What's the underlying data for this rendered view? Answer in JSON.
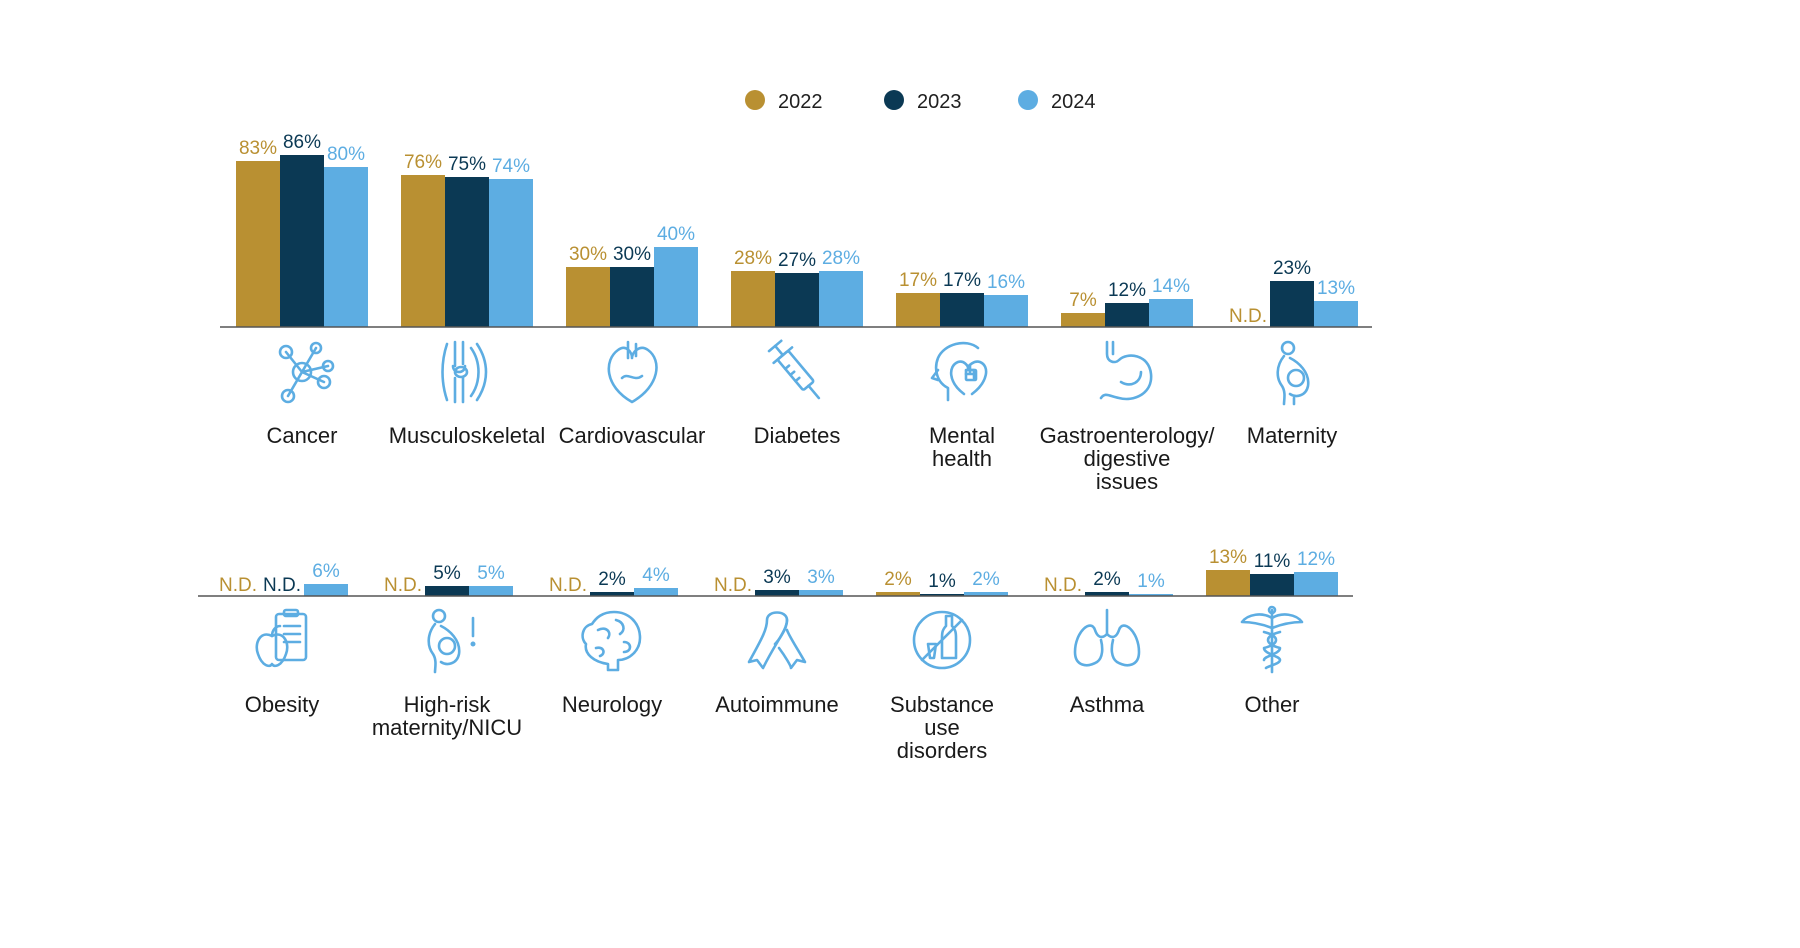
{
  "colors": {
    "2022": "#b99032",
    "2023": "#0b3954",
    "2024": "#5dade2",
    "axis": "#555555",
    "icon": "#5dade2"
  },
  "legend": [
    "2022",
    "2023",
    "2024"
  ],
  "nd_label": "N.D.",
  "chart_data": [
    {
      "type": "bar",
      "categories": [
        "Cancer",
        "Musculoskeletal",
        "Cardiovascular",
        "Diabetes",
        "Mental health",
        "Gastroenterology/ digestive issues",
        "Maternity"
      ],
      "category_lines": [
        [
          "Cancer"
        ],
        [
          "Musculoskeletal"
        ],
        [
          "Cardiovascular"
        ],
        [
          "Diabetes"
        ],
        [
          "Mental",
          "health"
        ],
        [
          "Gastroenterology/",
          "digestive",
          "issues"
        ],
        [
          "Maternity"
        ]
      ],
      "icons": [
        "molecule-icon",
        "knee-joint-icon",
        "heart-icon",
        "syringe-icon",
        "head-heart-icon",
        "stomach-icon",
        "pregnancy-icon"
      ],
      "series": [
        {
          "name": "2022",
          "values": [
            83,
            76,
            30,
            28,
            17,
            7,
            null
          ]
        },
        {
          "name": "2023",
          "values": [
            86,
            75,
            30,
            27,
            17,
            12,
            23
          ]
        },
        {
          "name": "2024",
          "values": [
            80,
            74,
            40,
            28,
            16,
            14,
            13
          ]
        }
      ],
      "ylim": [
        0,
        100
      ]
    },
    {
      "type": "bar",
      "categories": [
        "Obesity",
        "High-risk maternity/NICU",
        "Neurology",
        "Autoimmune",
        "Substance use disorders",
        "Asthma",
        "Other"
      ],
      "category_lines": [
        [
          "Obesity"
        ],
        [
          "High-risk",
          "maternity/NICU"
        ],
        [
          "Neurology"
        ],
        [
          "Autoimmune"
        ],
        [
          "Substance",
          "use",
          "disorders"
        ],
        [
          "Asthma"
        ],
        [
          "Other"
        ]
      ],
      "icons": [
        "apple-clipboard-icon",
        "high-risk-pregnancy-icon",
        "brain-icon",
        "ribbon-icon",
        "no-alcohol-icon",
        "lungs-icon",
        "caduceus-icon"
      ],
      "series": [
        {
          "name": "2022",
          "values": [
            null,
            null,
            null,
            null,
            2,
            null,
            13
          ]
        },
        {
          "name": "2023",
          "values": [
            null,
            5,
            2,
            3,
            1,
            2,
            11
          ]
        },
        {
          "name": "2024",
          "values": [
            6,
            5,
            4,
            3,
            2,
            1,
            12
          ]
        }
      ],
      "ylim": [
        0,
        100
      ]
    }
  ]
}
